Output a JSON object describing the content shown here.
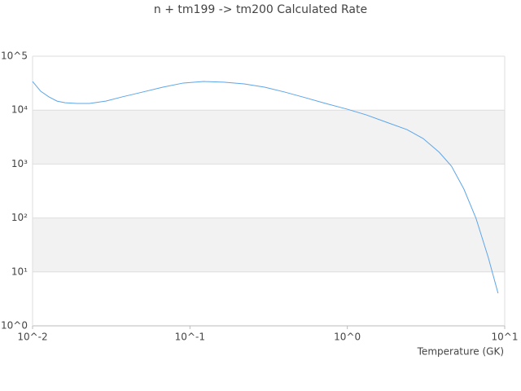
{
  "chart_data": {
    "type": "line",
    "title": "n + tm199 -> tm200 Calculated Rate",
    "x_label": "Temperature (GK)",
    "xscale": "log",
    "yscale": "log",
    "grid": true,
    "xlim": [
      0.01,
      10
    ],
    "ylim": [
      1,
      100000
    ],
    "xticks": [
      {
        "value": 0.01,
        "label": "10^-2"
      },
      {
        "value": 0.1,
        "label": "10^-1"
      },
      {
        "value": 1,
        "label": "10^0"
      },
      {
        "value": 10,
        "label": "10^1"
      }
    ],
    "yticks": [
      {
        "value": 1,
        "label": "10^0"
      },
      {
        "value": 10,
        "label": "10¹"
      },
      {
        "value": 100,
        "label": "10²"
      },
      {
        "value": 1000,
        "label": "10³"
      },
      {
        "value": 10000,
        "label": "10⁴"
      },
      {
        "value": 100000,
        "label": "10^5"
      }
    ],
    "series": [
      {
        "color": "#5da5e8",
        "x": [
          0.01,
          0.01127,
          0.0127,
          0.0143,
          0.0161,
          0.0192,
          0.023,
          0.0292,
          0.0371,
          0.0499,
          0.0673,
          0.0906,
          0.122,
          0.164,
          0.221,
          0.298,
          0.401,
          0.541,
          0.728,
          1,
          1.32,
          1.77,
          2.39,
          3.03,
          3.84,
          4.59,
          5.5,
          6.57,
          7.86,
          9.07
        ],
        "values": [
          34000,
          22400,
          17600,
          14700,
          13700,
          13300,
          13300,
          14700,
          17600,
          21600,
          26700,
          31800,
          34000,
          33000,
          30600,
          26700,
          21600,
          17000,
          13300,
          10400,
          8150,
          5970,
          4360,
          2980,
          1650,
          913,
          345,
          98.6,
          18.6,
          4.02
        ]
      }
    ]
  }
}
